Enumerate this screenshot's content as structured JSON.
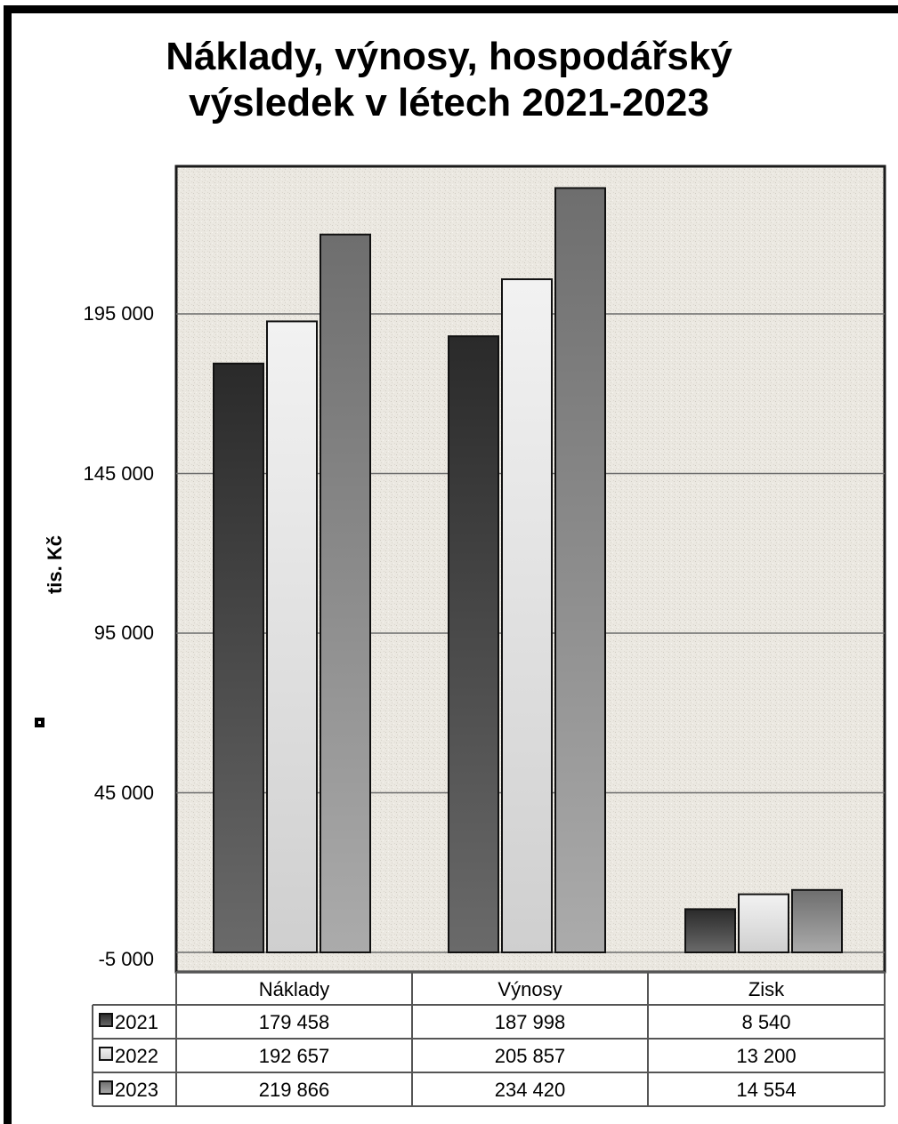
{
  "chart_data": {
    "type": "bar",
    "title": "Náklady, výnosy, hospodářský výsledek v létech 2021-2023",
    "title_lines": [
      "Náklady, výnosy, hospodářský",
      "výsledek v létech 2021-2023"
    ],
    "ylabel": "tis. Kč",
    "xlabel": "",
    "categories": [
      "Náklady",
      "Výnosy",
      "Zisk"
    ],
    "series": [
      {
        "name": "2021",
        "values": [
          179458,
          187998,
          8540
        ],
        "display": [
          "179 458",
          "187 998",
          "8 540"
        ]
      },
      {
        "name": "2022",
        "values": [
          192657,
          205857,
          13200
        ],
        "display": [
          "192 657",
          "205 857",
          "13 200"
        ]
      },
      {
        "name": "2023",
        "values": [
          219866,
          234420,
          14554
        ],
        "display": [
          "219 866",
          "234 420",
          "14 554"
        ]
      }
    ],
    "yticks": [
      -5000,
      45000,
      95000,
      145000,
      195000
    ],
    "ytick_labels": [
      "-5 000",
      "45 000",
      "95 000",
      "145 000",
      "195 000"
    ],
    "ylim": [
      -5000,
      240000
    ],
    "grid": true,
    "legend": "data-table-below",
    "colors": [
      "#3a3a3a",
      "#d6d6d6",
      "#8a8a8a"
    ],
    "background": "#ece9e2"
  }
}
